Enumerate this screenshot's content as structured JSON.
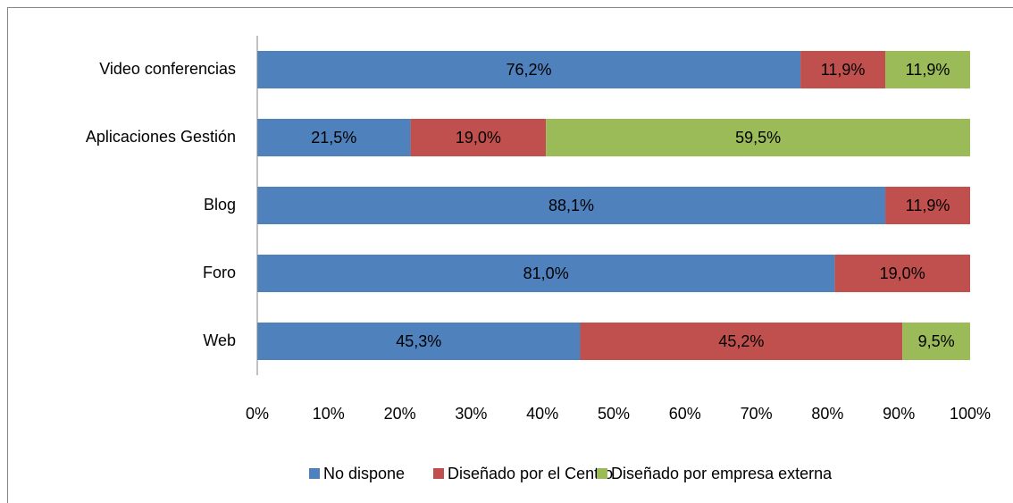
{
  "chart_data": {
    "type": "stacked_bar_horizontal",
    "categories": [
      "Video conferencias",
      "Aplicaciones Gestión",
      "Blog",
      "Foro",
      "Web"
    ],
    "series": [
      {
        "name": "No dispone",
        "color": "#4f81bd",
        "values": [
          76.2,
          21.5,
          88.1,
          81.0,
          45.3
        ],
        "value_labels": [
          "76,2%",
          "21,5%",
          "88,1%",
          "81,0%",
          "45,3%"
        ]
      },
      {
        "name": "Diseñado por el Centro",
        "color": "#c0504d",
        "values": [
          11.9,
          19.0,
          11.9,
          19.0,
          45.2
        ],
        "value_labels": [
          "11,9%",
          "19,0%",
          "11,9%",
          "19,0%",
          "45,2%"
        ]
      },
      {
        "name": "Diseñado por empresa externa",
        "color": "#9bbb59",
        "values": [
          11.9,
          59.5,
          null,
          null,
          9.5
        ],
        "value_labels": [
          "11,9%",
          "59,5%",
          null,
          null,
          "9,5%"
        ]
      }
    ],
    "xlim": [
      0,
      100
    ],
    "xticks": [
      {
        "value": 0,
        "label": "0%"
      },
      {
        "value": 10,
        "label": "10%"
      },
      {
        "value": 20,
        "label": "20%"
      },
      {
        "value": 30,
        "label": "30%"
      },
      {
        "value": 40,
        "label": "40%"
      },
      {
        "value": 50,
        "label": "50%"
      },
      {
        "value": 60,
        "label": "60%"
      },
      {
        "value": 70,
        "label": "70%"
      },
      {
        "value": 80,
        "label": "80%"
      },
      {
        "value": 90,
        "label": "90%"
      },
      {
        "value": 100,
        "label": "100%"
      }
    ],
    "legend": "bottom"
  }
}
